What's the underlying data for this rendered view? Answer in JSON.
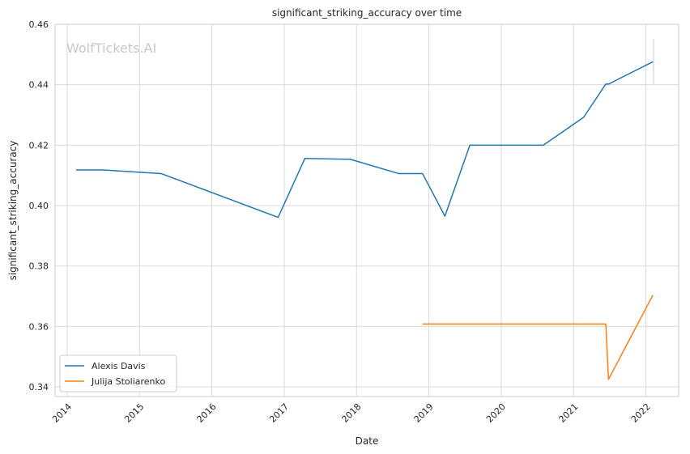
{
  "watermark": "WolfTickets.AI",
  "chart_data": {
    "type": "line",
    "title": "significant_striking_accuracy over time",
    "xlabel": "Date",
    "ylabel": "significant_striking_accuracy",
    "x_ticks": [
      "2014",
      "2015",
      "2016",
      "2017",
      "2018",
      "2019",
      "2020",
      "2021",
      "2022"
    ],
    "y_ticks": [
      "0.34",
      "0.36",
      "0.38",
      "0.40",
      "0.42",
      "0.44",
      "0.46"
    ],
    "xlim": [
      "2013-11-01",
      "2022-06-15"
    ],
    "ylim": [
      0.3368,
      0.46
    ],
    "grid": true,
    "legend_position": "lower-left",
    "series": [
      {
        "name": "Alexis Davis",
        "color": "#1f77b4",
        "points": [
          [
            "2014-02-15",
            0.4118
          ],
          [
            "2014-07-01",
            0.4118
          ],
          [
            "2015-04-20",
            0.4106
          ],
          [
            "2016-12-01",
            0.3961
          ],
          [
            "2017-04-15",
            0.4156
          ],
          [
            "2017-12-01",
            0.4153
          ],
          [
            "2018-08-01",
            0.4106
          ],
          [
            "2018-11-30",
            0.4106
          ],
          [
            "2019-03-23",
            0.3965
          ],
          [
            "2019-07-27",
            0.42
          ],
          [
            "2020-08-01",
            0.42
          ],
          [
            "2021-02-20",
            0.4292
          ],
          [
            "2021-06-12",
            0.4402
          ],
          [
            "2021-06-26",
            0.4402
          ],
          [
            "2022-02-05",
            0.4476
          ]
        ]
      },
      {
        "name": "Julija Stoliarenko",
        "color": "#ff7f0e",
        "points": [
          [
            "2018-11-30",
            0.3608
          ],
          [
            "2021-06-12",
            0.3608
          ],
          [
            "2021-06-26",
            0.3425
          ],
          [
            "2022-02-05",
            0.3704
          ]
        ]
      }
    ]
  }
}
